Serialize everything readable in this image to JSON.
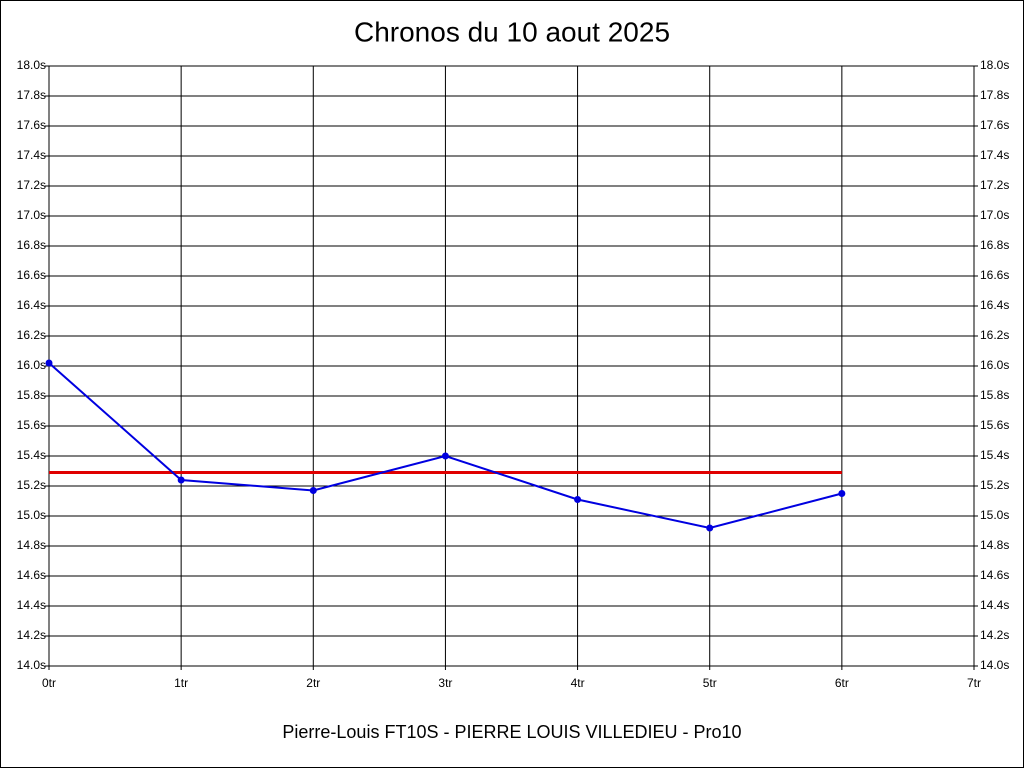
{
  "chart_data": {
    "type": "line",
    "title": "Chronos du 10 aout 2025",
    "xlabel": "Pierre-Louis FT10S - PIERRE LOUIS VILLEDIEU - Pro10",
    "x": [
      0,
      1,
      2,
      3,
      4,
      5,
      6
    ],
    "series": [
      {
        "color": "#0000e0",
        "values": [
          16.02,
          15.24,
          15.17,
          15.4,
          15.11,
          14.92,
          15.15
        ]
      }
    ],
    "reference_line": {
      "value": 15.29,
      "color": "#e00000",
      "x": [
        0,
        6
      ]
    },
    "xlim": [
      0,
      7
    ],
    "xticks": [
      {
        "value": 0,
        "label": "0tr"
      },
      {
        "value": 1,
        "label": "1tr"
      },
      {
        "value": 2,
        "label": "2tr"
      },
      {
        "value": 3,
        "label": "3tr"
      },
      {
        "value": 4,
        "label": "4tr"
      },
      {
        "value": 5,
        "label": "5tr"
      },
      {
        "value": 6,
        "label": "6tr"
      },
      {
        "value": 7,
        "label": "7tr"
      }
    ],
    "ylim": [
      14,
      18
    ],
    "yticks": [
      {
        "value": 14.0,
        "label": "14.0s"
      },
      {
        "value": 14.2,
        "label": "14.2s"
      },
      {
        "value": 14.4,
        "label": "14.4s"
      },
      {
        "value": 14.6,
        "label": "14.6s"
      },
      {
        "value": 14.8,
        "label": "14.8s"
      },
      {
        "value": 15.0,
        "label": "15.0s"
      },
      {
        "value": 15.2,
        "label": "15.2s"
      },
      {
        "value": 15.4,
        "label": "15.4s"
      },
      {
        "value": 15.6,
        "label": "15.6s"
      },
      {
        "value": 15.8,
        "label": "15.8s"
      },
      {
        "value": 16.0,
        "label": "16.0s"
      },
      {
        "value": 16.2,
        "label": "16.2s"
      },
      {
        "value": 16.4,
        "label": "16.4s"
      },
      {
        "value": 16.6,
        "label": "16.6s"
      },
      {
        "value": 16.8,
        "label": "16.8s"
      },
      {
        "value": 17.0,
        "label": "17.0s"
      },
      {
        "value": 17.2,
        "label": "17.2s"
      },
      {
        "value": 17.4,
        "label": "17.4s"
      },
      {
        "value": 17.6,
        "label": "17.6s"
      },
      {
        "value": 17.8,
        "label": "17.8s"
      },
      {
        "value": 18.0,
        "label": "18.0s"
      }
    ],
    "grid": true
  }
}
